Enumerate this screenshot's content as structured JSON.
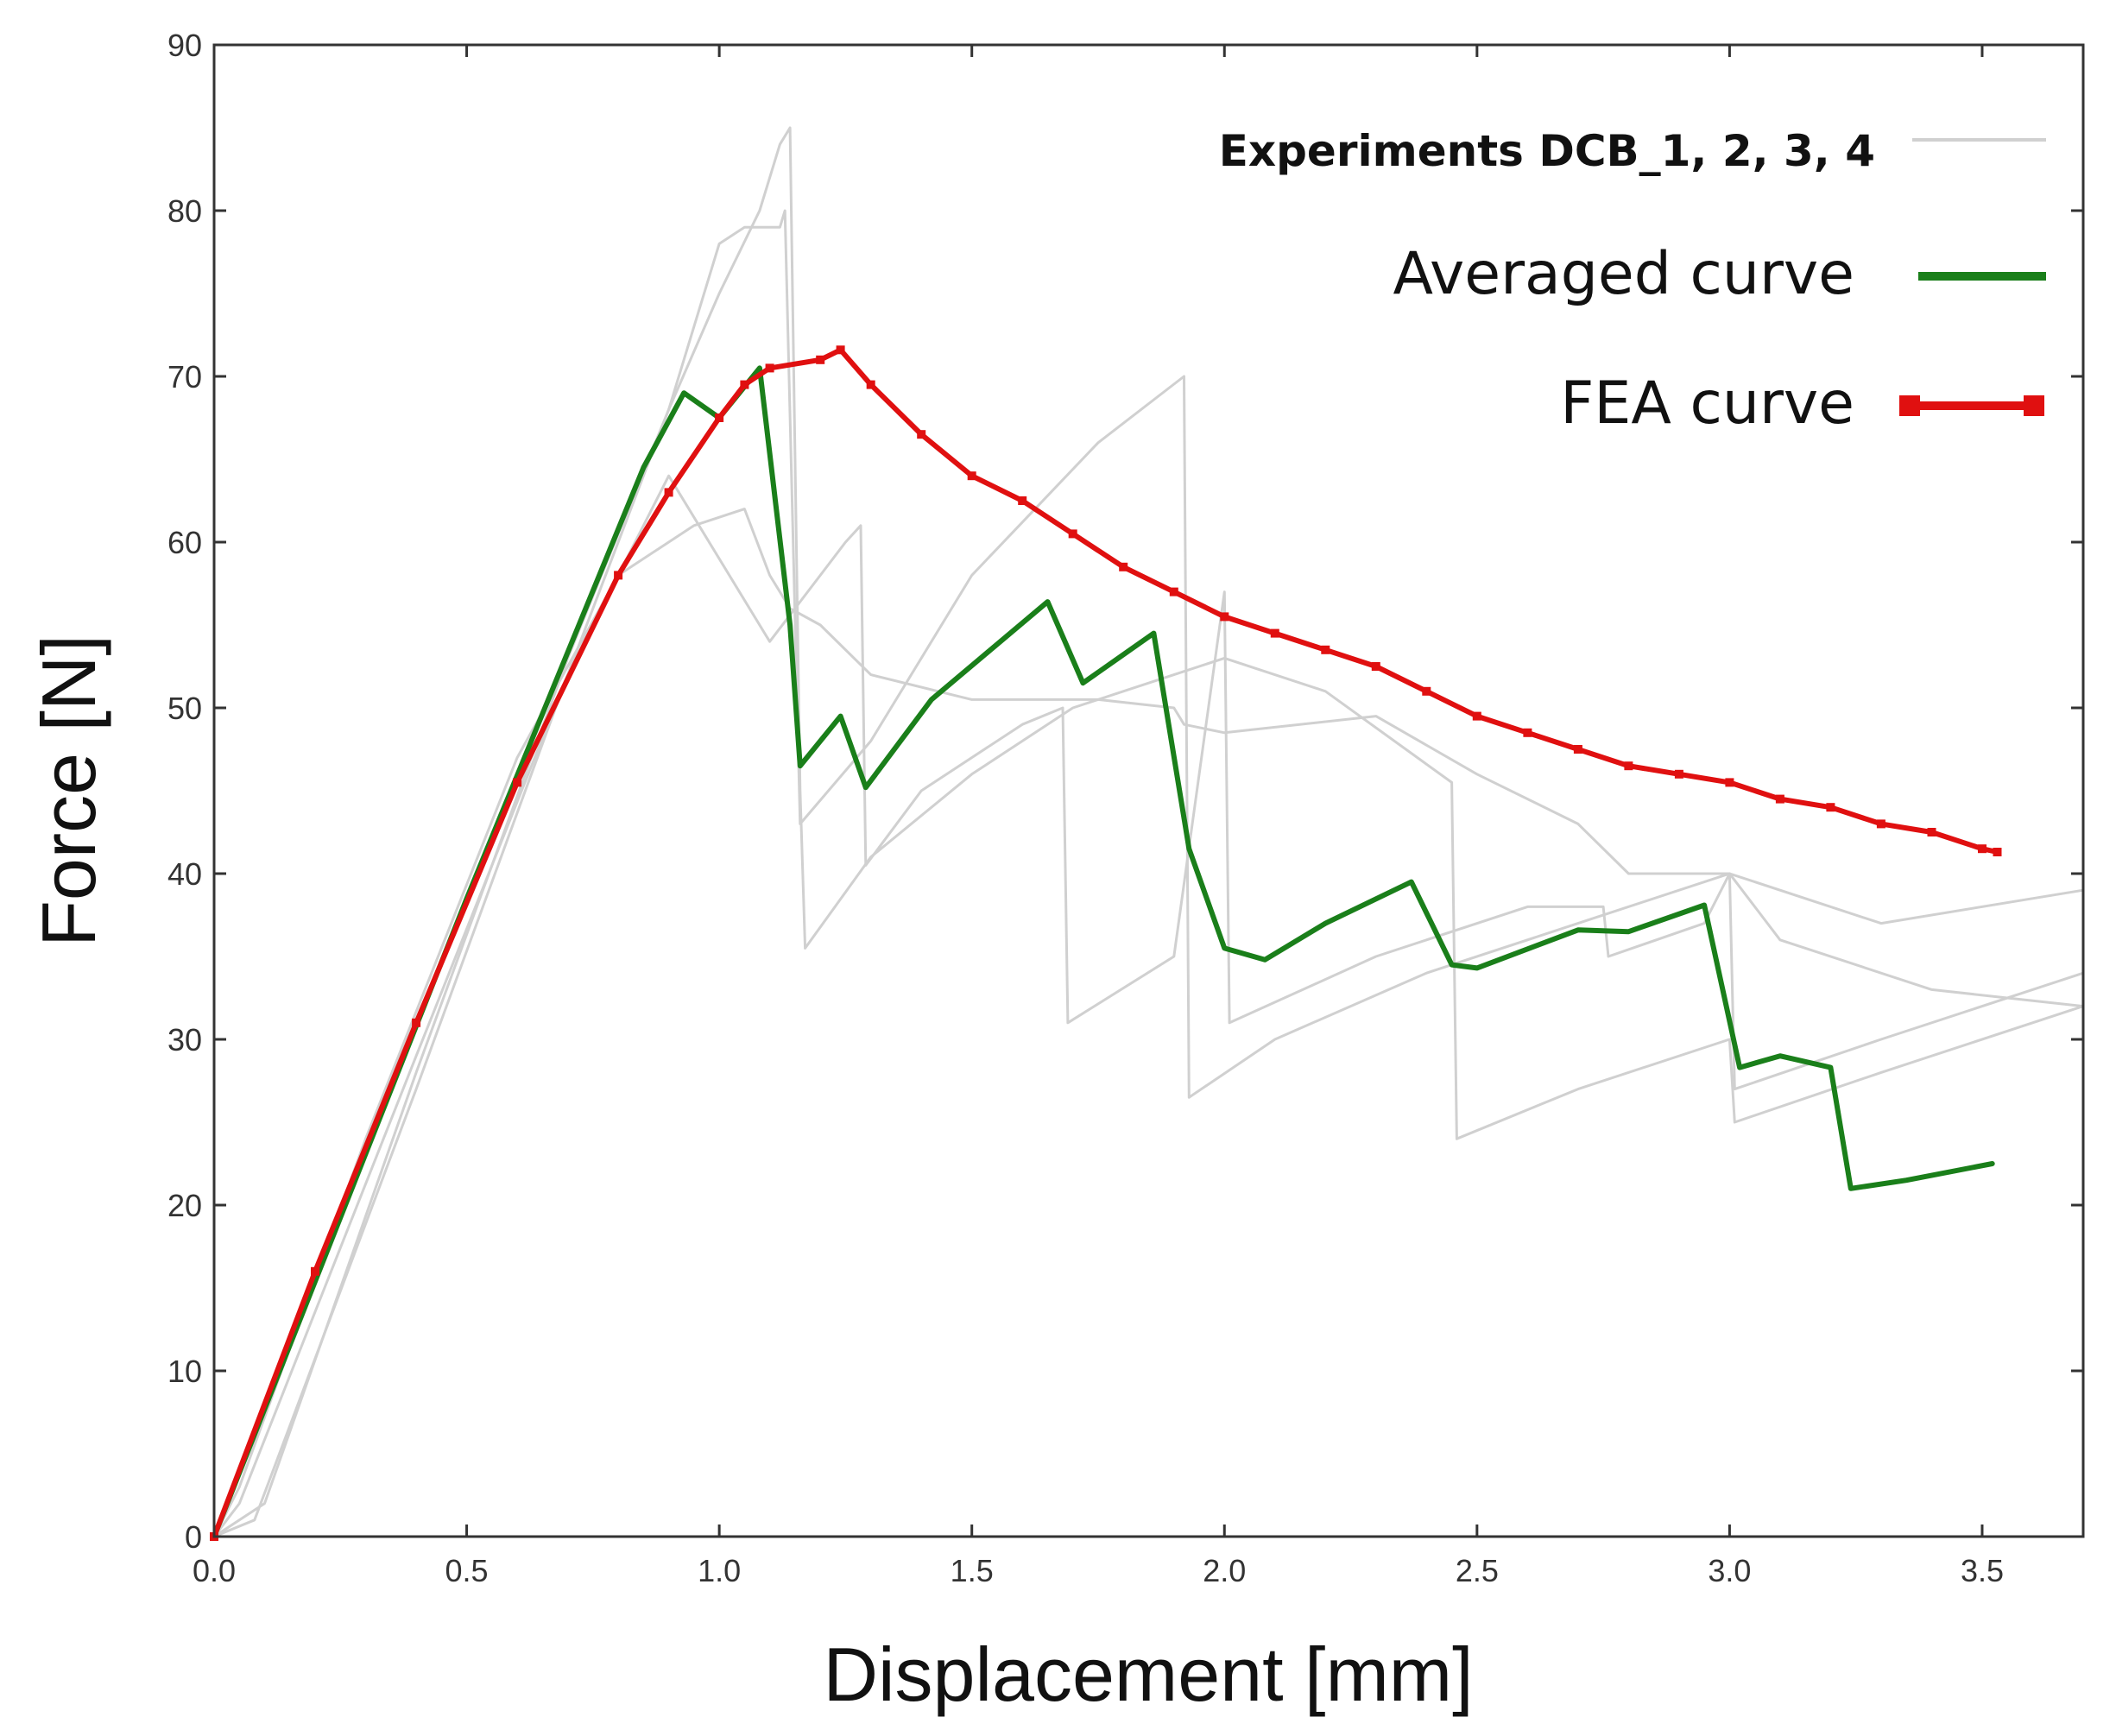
{
  "chart_data": {
    "type": "line",
    "title": "",
    "xlabel": "Displacement [mm]",
    "ylabel": "Force [N]",
    "xlim": [
      0,
      3.7
    ],
    "ylim": [
      0,
      90
    ],
    "xticks": [
      0.0,
      0.5,
      1.0,
      1.5,
      2.0,
      2.5,
      3.0,
      3.5
    ],
    "xtick_labels": [
      "0.0",
      "0.5",
      "1.0",
      "1.5",
      "2.0",
      "2.5",
      "3.0",
      "3.5"
    ],
    "yticks": [
      0,
      10,
      20,
      30,
      40,
      50,
      60,
      70,
      80,
      90
    ],
    "ytick_labels": [
      "0",
      "10",
      "20",
      "30",
      "40",
      "50",
      "60",
      "70",
      "80",
      "90"
    ],
    "grid": false,
    "legend_position": "top-right",
    "legend": [
      {
        "label": "Experiments DCB_1, 2, 3, 4",
        "color": "#d0d0d0",
        "style": "thin"
      },
      {
        "label": "Averaged curve",
        "color": "#1a7f1a",
        "style": "thick"
      },
      {
        "label": "FEA curve",
        "color": "#e01010",
        "style": "marker"
      }
    ],
    "series": [
      {
        "name": "DCB_1",
        "role": "experiment",
        "color": "#d0d0d0",
        "x": [
          0.0,
          0.1,
          0.4,
          0.7,
          0.9,
          1.0,
          1.05,
          1.12,
          1.13,
          1.16,
          1.3,
          1.5,
          1.75,
          1.92,
          1.93,
          2.1,
          2.4,
          2.7,
          3.0,
          3.01,
          3.3,
          3.7
        ],
        "y": [
          0,
          2,
          28,
          53,
          68,
          78,
          79,
          79,
          80,
          43,
          48,
          58,
          66,
          70,
          26.5,
          30,
          34,
          37,
          40,
          27,
          30,
          34
        ]
      },
      {
        "name": "DCB_2",
        "role": "experiment",
        "color": "#d0d0d0",
        "x": [
          0.0,
          0.08,
          0.4,
          0.7,
          0.9,
          1.0,
          1.08,
          1.12,
          1.14,
          1.16,
          1.17,
          1.3,
          1.5,
          1.7,
          1.9,
          2.0,
          2.2,
          2.45,
          2.46,
          2.7,
          3.0,
          3.01,
          3.3,
          3.7
        ],
        "y": [
          0,
          1,
          27,
          52,
          68,
          75,
          80,
          84,
          85,
          45,
          35.5,
          41,
          46,
          50,
          52,
          53,
          51,
          45.5,
          24,
          27,
          30,
          25,
          28,
          32
        ]
      },
      {
        "name": "DCB_3",
        "role": "experiment",
        "color": "#d0d0d0",
        "x": [
          0.0,
          0.05,
          0.3,
          0.6,
          0.8,
          0.95,
          1.05,
          1.1,
          1.14,
          1.2,
          1.3,
          1.5,
          1.75,
          1.9,
          1.92,
          2.0,
          2.3,
          2.5,
          2.7,
          2.8,
          3.0,
          3.3,
          3.7
        ],
        "y": [
          0,
          3,
          24,
          47,
          58,
          61,
          62,
          58,
          56,
          55,
          52,
          50.5,
          50.5,
          50,
          49,
          48.5,
          49.5,
          46,
          43,
          40,
          40,
          37,
          39
        ]
      },
      {
        "name": "DCB_4",
        "role": "experiment",
        "color": "#d0d0d0",
        "x": [
          0.0,
          0.05,
          0.4,
          0.7,
          0.9,
          1.1,
          1.2,
          1.25,
          1.28,
          1.29,
          1.4,
          1.6,
          1.68,
          1.69,
          1.9,
          2.0,
          2.01,
          2.3,
          2.6,
          2.75,
          2.76,
          2.95,
          3.0,
          3.1,
          3.4,
          3.7
        ],
        "y": [
          0,
          2,
          29,
          52,
          64,
          54,
          58,
          60,
          61,
          40.5,
          45,
          49,
          50,
          31,
          35,
          57,
          31,
          35,
          38,
          38,
          35,
          37,
          40,
          36,
          33,
          32
        ]
      },
      {
        "name": "Averaged curve",
        "role": "average",
        "color": "#1a7f1a",
        "x": [
          0.0,
          0.5,
          0.85,
          0.93,
          1.0,
          1.08,
          1.14,
          1.16,
          1.24,
          1.29,
          1.42,
          1.65,
          1.72,
          1.86,
          1.93,
          2.0,
          2.08,
          2.2,
          2.37,
          2.45,
          2.5,
          2.7,
          2.8,
          2.95,
          3.02,
          3.1,
          3.2,
          3.24,
          3.35,
          3.52
        ],
        "y": [
          0,
          38.5,
          64.5,
          69,
          67.5,
          70.5,
          55,
          46.5,
          49.5,
          45.2,
          50.5,
          56.4,
          51.5,
          54.5,
          41.5,
          35.5,
          34.8,
          37,
          39.5,
          34.5,
          34.3,
          36.6,
          36.5,
          38.1,
          28.3,
          29,
          28.3,
          21,
          21.5,
          22.5
        ]
      },
      {
        "name": "FEA curve",
        "role": "simulation",
        "color": "#e01010",
        "x": [
          0.0,
          0.2,
          0.4,
          0.6,
          0.8,
          0.9,
          1.0,
          1.05,
          1.1,
          1.2,
          1.24,
          1.3,
          1.4,
          1.5,
          1.6,
          1.7,
          1.8,
          1.9,
          2.0,
          2.1,
          2.2,
          2.3,
          2.4,
          2.5,
          2.6,
          2.7,
          2.8,
          2.9,
          3.0,
          3.1,
          3.2,
          3.3,
          3.4,
          3.5,
          3.53
        ],
        "y": [
          0,
          16,
          31,
          45.5,
          58,
          63,
          67.5,
          69.5,
          70.5,
          71,
          71.6,
          69.5,
          66.5,
          64,
          62.5,
          60.5,
          58.5,
          57,
          55.5,
          54.5,
          53.5,
          52.5,
          51,
          49.5,
          48.5,
          47.5,
          46.5,
          46,
          45.5,
          44.5,
          44,
          43,
          42.5,
          41.5,
          41.3
        ]
      }
    ]
  }
}
